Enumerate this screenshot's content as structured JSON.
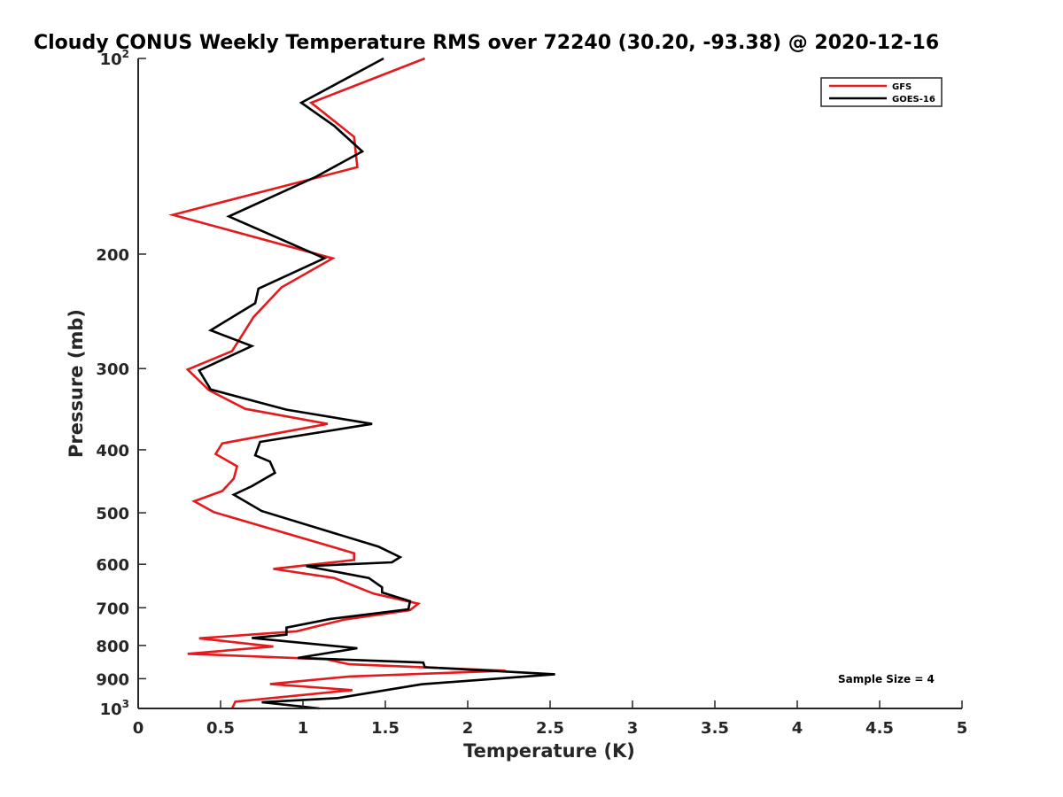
{
  "chart_data": {
    "type": "line",
    "title": "Cloudy CONUS Weekly Temperature RMS over 72240 (30.20, -93.38) @ 2020-12-16",
    "xlabel": "Temperature (K)",
    "ylabel": "Pressure (mb)",
    "xlim": [
      0,
      5
    ],
    "ylim": [
      100,
      1000
    ],
    "y_scale": "log",
    "y_reversed": true,
    "x_ticks": [
      "0",
      "0.5",
      "1",
      "1.5",
      "2",
      "2.5",
      "3",
      "3.5",
      "4",
      "4.5",
      "5"
    ],
    "y_ticks": [
      {
        "value": 100,
        "base": "10",
        "exp": "2"
      },
      {
        "value": 200,
        "label": "200"
      },
      {
        "value": 300,
        "label": "300"
      },
      {
        "value": 400,
        "label": "400"
      },
      {
        "value": 500,
        "label": "500"
      },
      {
        "value": 600,
        "label": "600"
      },
      {
        "value": 700,
        "label": "700"
      },
      {
        "value": 800,
        "label": "800"
      },
      {
        "value": 900,
        "label": "900"
      },
      {
        "value": 1000,
        "base": "10",
        "exp": "3"
      }
    ],
    "legend_position": "top-right",
    "annotation": "Sample Size = 4",
    "series": [
      {
        "name": "GFS",
        "color": "#e41a1c",
        "points": [
          [
            1.74,
            100
          ],
          [
            1.05,
            117
          ],
          [
            1.31,
            132
          ],
          [
            1.33,
            147
          ],
          [
            0.21,
            174
          ],
          [
            1.18,
            203
          ],
          [
            0.87,
            225
          ],
          [
            0.7,
            250
          ],
          [
            0.57,
            282
          ],
          [
            0.3,
            301
          ],
          [
            0.43,
            324
          ],
          [
            0.65,
            346
          ],
          [
            1.15,
            365
          ],
          [
            0.51,
            391
          ],
          [
            0.47,
            406
          ],
          [
            0.6,
            424
          ],
          [
            0.58,
            443
          ],
          [
            0.51,
            463
          ],
          [
            0.34,
            480
          ],
          [
            0.46,
            499
          ],
          [
            1.31,
            577
          ],
          [
            1.31,
            591
          ],
          [
            0.82,
            610
          ],
          [
            1.19,
            630
          ],
          [
            1.43,
            666
          ],
          [
            1.7,
            690
          ],
          [
            1.65,
            706
          ],
          [
            1.25,
            730
          ],
          [
            0.96,
            761
          ],
          [
            0.37,
            780
          ],
          [
            0.82,
            803
          ],
          [
            0.3,
            824
          ],
          [
            1.14,
            840
          ],
          [
            1.28,
            855
          ],
          [
            2.23,
            875
          ],
          [
            1.28,
            893
          ],
          [
            0.8,
            917
          ],
          [
            1.3,
            937
          ],
          [
            0.59,
            976
          ],
          [
            0.57,
            1000
          ]
        ]
      },
      {
        "name": "GOES-16",
        "color": "#000000",
        "points": [
          [
            1.49,
            100
          ],
          [
            0.99,
            117
          ],
          [
            1.19,
            127
          ],
          [
            1.36,
            139
          ],
          [
            1.08,
            152
          ],
          [
            0.55,
            175
          ],
          [
            1.13,
            203
          ],
          [
            0.73,
            226
          ],
          [
            0.71,
            238
          ],
          [
            0.44,
            262
          ],
          [
            0.69,
            277
          ],
          [
            0.37,
            302
          ],
          [
            0.44,
            323
          ],
          [
            0.9,
            347
          ],
          [
            1.42,
            365
          ],
          [
            0.74,
            389
          ],
          [
            0.71,
            408
          ],
          [
            0.8,
            417
          ],
          [
            0.83,
            434
          ],
          [
            0.69,
            455
          ],
          [
            0.58,
            469
          ],
          [
            0.75,
            497
          ],
          [
            1.46,
            564
          ],
          [
            1.59,
            585
          ],
          [
            1.54,
            596
          ],
          [
            1.02,
            604
          ],
          [
            1.4,
            630
          ],
          [
            1.48,
            651
          ],
          [
            1.48,
            663
          ],
          [
            1.65,
            684
          ],
          [
            1.64,
            704
          ],
          [
            1.17,
            728
          ],
          [
            0.9,
            751
          ],
          [
            0.9,
            770
          ],
          [
            0.69,
            779
          ],
          [
            1.33,
            808
          ],
          [
            0.97,
            836
          ],
          [
            1.73,
            850
          ],
          [
            1.74,
            864
          ],
          [
            2.53,
            886
          ],
          [
            1.72,
            918
          ],
          [
            1.21,
            964
          ],
          [
            0.75,
            978
          ],
          [
            1.1,
            1000
          ]
        ]
      }
    ]
  }
}
